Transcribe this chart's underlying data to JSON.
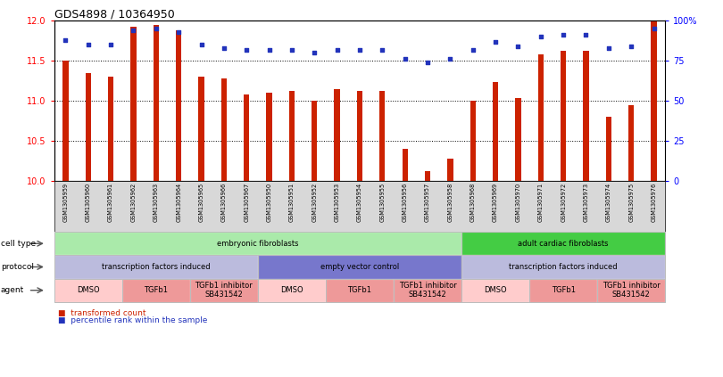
{
  "title": "GDS4898 / 10364950",
  "samples": [
    "GSM1305959",
    "GSM1305960",
    "GSM1305961",
    "GSM1305962",
    "GSM1305963",
    "GSM1305964",
    "GSM1305965",
    "GSM1305966",
    "GSM1305967",
    "GSM1305950",
    "GSM1305951",
    "GSM1305952",
    "GSM1305953",
    "GSM1305954",
    "GSM1305955",
    "GSM1305956",
    "GSM1305957",
    "GSM1305958",
    "GSM1305968",
    "GSM1305969",
    "GSM1305970",
    "GSM1305971",
    "GSM1305972",
    "GSM1305973",
    "GSM1305974",
    "GSM1305975",
    "GSM1305976"
  ],
  "bar_values": [
    11.5,
    11.35,
    11.3,
    11.93,
    11.95,
    11.88,
    11.3,
    11.28,
    11.08,
    11.1,
    11.12,
    11.0,
    11.15,
    11.12,
    11.12,
    10.4,
    10.12,
    10.28,
    11.0,
    11.23,
    11.03,
    11.58,
    11.63,
    11.63,
    10.8,
    10.95,
    12.0
  ],
  "percentile_values": [
    88,
    85,
    85,
    94,
    95,
    93,
    85,
    83,
    82,
    82,
    82,
    80,
    82,
    82,
    82,
    76,
    74,
    76,
    82,
    87,
    84,
    90,
    91,
    91,
    83,
    84,
    95
  ],
  "bar_color": "#cc2200",
  "dot_color": "#2233bb",
  "ylim_left": [
    10,
    12
  ],
  "ylim_right": [
    0,
    100
  ],
  "yticks_left": [
    10,
    10.5,
    11,
    11.5,
    12
  ],
  "yticks_right": [
    0,
    25,
    50,
    75,
    100
  ],
  "ytick_right_labels": [
    "0",
    "25",
    "50",
    "75",
    "100%"
  ],
  "grid_values": [
    10.5,
    11.0,
    11.5
  ],
  "cell_type_regions": [
    {
      "label": "embryonic fibroblasts",
      "start": 0,
      "end": 18,
      "color": "#aaeaaa"
    },
    {
      "label": "adult cardiac fibroblasts",
      "start": 18,
      "end": 27,
      "color": "#44cc44"
    }
  ],
  "protocol_regions": [
    {
      "label": "transcription factors induced",
      "start": 0,
      "end": 9,
      "color": "#bbbbdd"
    },
    {
      "label": "empty vector control",
      "start": 9,
      "end": 18,
      "color": "#7777cc"
    },
    {
      "label": "transcription factors induced",
      "start": 18,
      "end": 27,
      "color": "#bbbbdd"
    }
  ],
  "agent_regions": [
    {
      "label": "DMSO",
      "start": 0,
      "end": 3,
      "color": "#ffcccc"
    },
    {
      "label": "TGFb1",
      "start": 3,
      "end": 6,
      "color": "#ee9999"
    },
    {
      "label": "TGFb1 inhibitor\nSB431542",
      "start": 6,
      "end": 9,
      "color": "#ee9999"
    },
    {
      "label": "DMSO",
      "start": 9,
      "end": 12,
      "color": "#ffcccc"
    },
    {
      "label": "TGFb1",
      "start": 12,
      "end": 15,
      "color": "#ee9999"
    },
    {
      "label": "TGFb1 inhibitor\nSB431542",
      "start": 15,
      "end": 18,
      "color": "#ee9999"
    },
    {
      "label": "DMSO",
      "start": 18,
      "end": 21,
      "color": "#ffcccc"
    },
    {
      "label": "TGFb1",
      "start": 21,
      "end": 24,
      "color": "#ee9999"
    },
    {
      "label": "TGFb1 inhibitor\nSB431542",
      "start": 24,
      "end": 27,
      "color": "#ee9999"
    }
  ],
  "background_color": "#ffffff",
  "row_label_color": "#000000",
  "legend_bar_label": "transformed count",
  "legend_dot_label": "percentile rank within the sample"
}
